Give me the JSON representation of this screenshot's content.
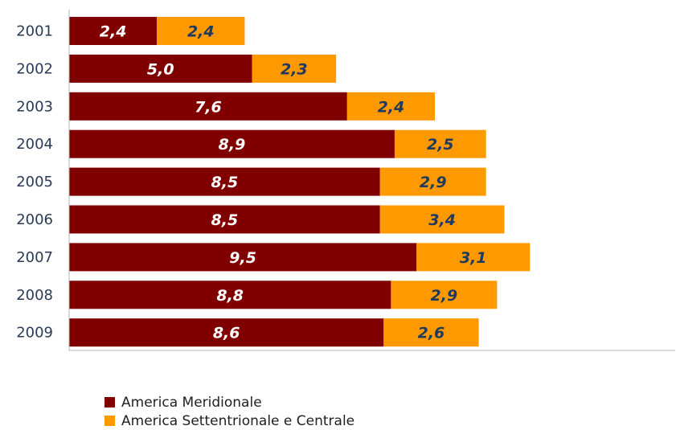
{
  "chart_data": {
    "type": "bar",
    "orientation": "horizontal",
    "stacked": true,
    "categories": [
      "2001",
      "2002",
      "2003",
      "2004",
      "2005",
      "2006",
      "2007",
      "2008",
      "2009"
    ],
    "series": [
      {
        "name": "America Meridionale",
        "color": "#800000",
        "label_color": "#ffffff",
        "values": [
          2.4,
          5.0,
          7.6,
          8.9,
          8.5,
          8.5,
          9.5,
          8.8,
          8.6
        ],
        "labels": [
          "2,4",
          "5,0",
          "7,6",
          "8,9",
          "8,5",
          "8,5",
          "9,5",
          "8,8",
          "8,6"
        ]
      },
      {
        "name": "America Settentrionale e Centrale",
        "color": "#FF9900",
        "label_color": "#1F3A5F",
        "values": [
          2.4,
          2.3,
          2.4,
          2.5,
          2.9,
          3.4,
          3.1,
          2.9,
          2.6
        ],
        "labels": [
          "2,4",
          "2,3",
          "2,4",
          "2,5",
          "2,9",
          "3,4",
          "3,1",
          "2,9",
          "2,6"
        ]
      }
    ],
    "title": "",
    "xlabel": "",
    "ylabel": "",
    "xlim": [
      0,
      14.6
    ],
    "grid": false,
    "legend_position": "bottom-left"
  }
}
